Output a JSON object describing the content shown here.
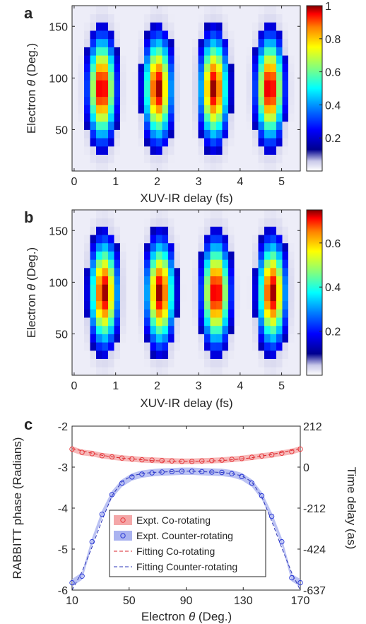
{
  "chart_data": [
    {
      "panel": "a",
      "type": "heatmap",
      "xlabel": "XUV-IR delay (fs)",
      "ylabel_prefix": "Electron ",
      "ylabel_symbol": "θ",
      "ylabel_suffix": " (Deg.)",
      "xlim": [
        -0.05,
        5.45
      ],
      "ylim": [
        10,
        170
      ],
      "x_ticks": [
        0,
        1,
        2,
        3,
        4,
        5
      ],
      "y_ticks": [
        50,
        100,
        150
      ],
      "colorbar_ticks": [
        0.2,
        0.4,
        0.6,
        0.8,
        1
      ],
      "colorbar_range": [
        0,
        1
      ],
      "colormap": "jet-with-white-floor",
      "columns": 38,
      "rows": 20,
      "peak_delays_fs": [
        0.67,
        2.02,
        3.37,
        4.72
      ],
      "peak_angle_deg": 90,
      "peak_value": 1.0,
      "min_value": 0.0
    },
    {
      "panel": "b",
      "type": "heatmap",
      "xlabel": "XUV-IR delay (fs)",
      "ylabel_prefix": "Electron ",
      "ylabel_symbol": "θ",
      "ylabel_suffix": " (Deg.)",
      "xlim": [
        -0.05,
        5.45
      ],
      "ylim": [
        10,
        170
      ],
      "x_ticks": [
        0,
        1,
        2,
        3,
        4,
        5
      ],
      "y_ticks": [
        50,
        100,
        150
      ],
      "colorbar_ticks": [
        0.2,
        0.4,
        0.6
      ],
      "colorbar_range": [
        0,
        0.75
      ],
      "colormap": "jet-with-white-floor",
      "columns": 38,
      "rows": 20,
      "peak_delays_fs": [
        0.72,
        2.07,
        3.42,
        4.77
      ],
      "peak_angle_deg": 90,
      "peak_value": 0.75,
      "min_value": 0.0
    },
    {
      "panel": "c",
      "type": "line",
      "xlabel_prefix": "Electron ",
      "xlabel_symbol": "θ",
      "xlabel_suffix": " (Deg.)",
      "ylabel": "RABBITT phase (Radians)",
      "y2label": "Time delay (as)",
      "xlim": [
        10,
        170
      ],
      "ylim": [
        -6,
        -2
      ],
      "x_ticks": [
        10,
        50,
        90,
        130,
        170
      ],
      "y_ticks": [
        -6,
        -5,
        -4,
        -3,
        -2
      ],
      "y2_ticks": [
        {
          "value": -6,
          "label": "-637"
        },
        {
          "value": -5,
          "label": "-424"
        },
        {
          "value": -4,
          "label": "-212"
        },
        {
          "value": -3,
          "label": "0"
        },
        {
          "value": -2,
          "label": "212"
        }
      ],
      "legend_position": "bottom-center",
      "x": [
        10,
        17,
        24,
        31,
        38,
        45,
        52,
        59,
        66,
        73,
        80,
        87,
        94,
        101,
        108,
        115,
        122,
        129,
        136,
        143,
        150,
        157,
        164,
        170
      ],
      "series": [
        {
          "name": "Expt. Co-rotating",
          "kind": "markers+band",
          "color": "#e8393d",
          "band_color": "#f4a7a8",
          "values": [
            -2.56,
            -2.64,
            -2.67,
            -2.72,
            -2.75,
            -2.78,
            -2.8,
            -2.82,
            -2.83,
            -2.84,
            -2.85,
            -2.86,
            -2.86,
            -2.85,
            -2.84,
            -2.83,
            -2.81,
            -2.79,
            -2.76,
            -2.73,
            -2.7,
            -2.66,
            -2.62,
            -2.56
          ],
          "band_halfwidth": 0.07
        },
        {
          "name": "Expt. Counter-rotating",
          "kind": "markers+band",
          "color": "#2c3bd6",
          "band_color": "#aab3f0",
          "values": [
            -5.82,
            -5.66,
            -4.82,
            -4.15,
            -3.67,
            -3.39,
            -3.24,
            -3.17,
            -3.14,
            -3.12,
            -3.11,
            -3.1,
            -3.1,
            -3.11,
            -3.12,
            -3.13,
            -3.16,
            -3.23,
            -3.39,
            -3.7,
            -4.2,
            -4.82,
            -5.7,
            -5.82
          ],
          "band_halfwidth": 0.09
        },
        {
          "name": "Fitting Co-rotating",
          "kind": "dashed",
          "color": "#d9262b",
          "values": [
            -2.55,
            -2.6,
            -2.66,
            -2.71,
            -2.75,
            -2.78,
            -2.8,
            -2.82,
            -2.84,
            -2.85,
            -2.86,
            -2.86,
            -2.86,
            -2.86,
            -2.85,
            -2.84,
            -2.82,
            -2.8,
            -2.77,
            -2.73,
            -2.69,
            -2.64,
            -2.59,
            -2.55
          ]
        },
        {
          "name": "Fitting Counter-rotating",
          "kind": "dashed",
          "color": "#2b34b8",
          "values": [
            -6.0,
            -5.55,
            -4.95,
            -4.3,
            -3.7,
            -3.35,
            -3.21,
            -3.16,
            -3.13,
            -3.12,
            -3.11,
            -3.1,
            -3.1,
            -3.11,
            -3.12,
            -3.13,
            -3.16,
            -3.21,
            -3.36,
            -3.72,
            -4.32,
            -4.97,
            -5.58,
            -6.0
          ]
        }
      ]
    }
  ],
  "labels": {
    "a": "a",
    "b": "b",
    "c": "c"
  }
}
